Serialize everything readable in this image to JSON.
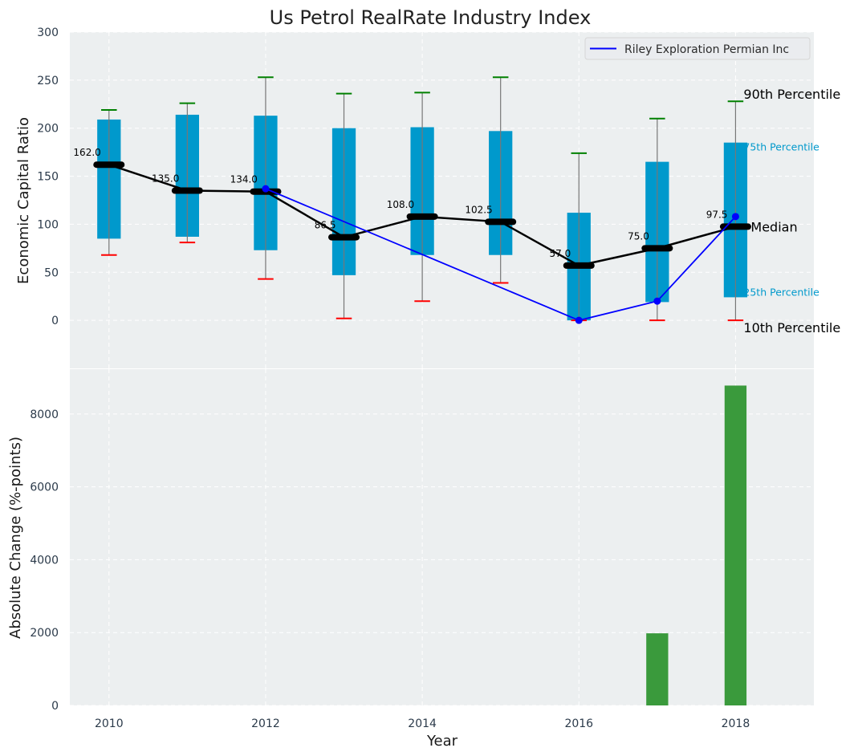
{
  "chart_data": [
    {
      "type": "box",
      "title": "Us Petrol RealRate Industry Index",
      "xlabel": "",
      "ylabel": "Economic Capital Ratio",
      "xlim": [
        2009.5,
        2019.0
      ],
      "ylim": [
        -50,
        300
      ],
      "yticks": [
        0,
        50,
        100,
        150,
        200,
        250,
        300
      ],
      "grid": true,
      "years": [
        2010,
        2011,
        2012,
        2013,
        2014,
        2015,
        2016,
        2017,
        2018
      ],
      "p10": [
        68,
        81,
        43,
        2,
        20,
        39,
        0,
        0,
        0
      ],
      "q1": [
        85,
        87,
        73,
        47,
        68,
        68,
        0,
        19,
        24
      ],
      "median": [
        162.0,
        135.0,
        134.0,
        86.5,
        108.0,
        102.5,
        57.0,
        75.0,
        97.5
      ],
      "median_labels": [
        "162.0",
        "135.0",
        "134.0",
        "86.5",
        "108.0",
        "102.5",
        "57.0",
        "75.0",
        "97.5"
      ],
      "q3": [
        209,
        214,
        213,
        200,
        201,
        197,
        112,
        165,
        185
      ],
      "p90": [
        219,
        226,
        253,
        236,
        237,
        253,
        174,
        210,
        228
      ],
      "series": [
        {
          "name": "Riley Exploration Permian Inc",
          "x": [
            2012,
            2016,
            2017,
            2018
          ],
          "values": [
            137,
            0,
            20,
            108
          ],
          "color": "#0000ff"
        }
      ],
      "legend": {
        "position": "top-right",
        "entries": [
          "Riley Exploration Permian Inc"
        ]
      },
      "annotations": [
        "90th Percentile",
        "75th Percentile",
        "Median",
        "25th Percentile",
        "10th Percentile"
      ],
      "colors": {
        "box": "#0099cc",
        "median": "#000000",
        "p90_cap": "#008000",
        "p10_cap": "#ff0000",
        "background": "#eceff0"
      }
    },
    {
      "type": "bar",
      "xlabel": "Year",
      "ylabel": "Absolute Change (%-points)",
      "xlim": [
        2009.5,
        2019.0
      ],
      "ylim": [
        0,
        9230
      ],
      "xticks": [
        2010,
        2012,
        2014,
        2016,
        2018
      ],
      "yticks": [
        0,
        2000,
        4000,
        6000,
        8000
      ],
      "grid": true,
      "categories": [
        2017,
        2018
      ],
      "values": [
        1980,
        8780
      ],
      "color": "#3a9a3c"
    }
  ]
}
